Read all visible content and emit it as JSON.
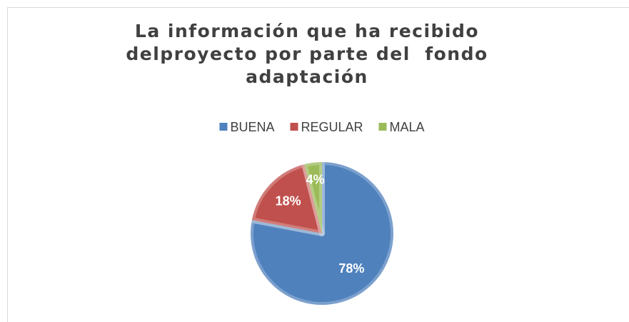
{
  "chart_data": {
    "type": "pie",
    "title": "La información que ha recibido\ndelproyecto por parte del  fondo\nadaptación",
    "categories": [
      "BUENA",
      "REGULAR",
      "MALA"
    ],
    "values": [
      78,
      18,
      4
    ],
    "value_labels": [
      "78%",
      "18%",
      "4%"
    ],
    "colors": [
      "#4f81bd",
      "#c0504d",
      "#9bbb59"
    ],
    "legend": "top"
  }
}
